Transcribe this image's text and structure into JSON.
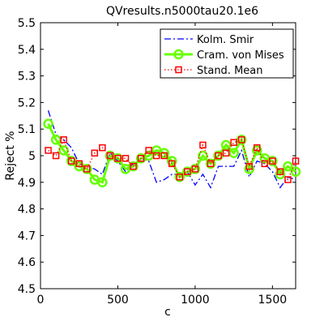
{
  "chart_data": {
    "type": "line",
    "title": "QVresults.n5000tau20.1e6",
    "xlabel": "c",
    "ylabel": "Reject %",
    "xlim": [
      0,
      1650
    ],
    "ylim": [
      4.5,
      5.5
    ],
    "xticks": [
      0,
      500,
      1000,
      1500
    ],
    "yticks": [
      4.5,
      4.6,
      4.7,
      4.8,
      4.9,
      5.0,
      5.1,
      5.2,
      5.3,
      5.4,
      5.5
    ],
    "xtick_labels": [
      "0",
      "500",
      "1000",
      "1500"
    ],
    "ytick_labels": [
      "4.5",
      "4.6",
      "4.7",
      "4.8",
      "4.9",
      "5",
      "5.1",
      "5.2",
      "5.3",
      "5.4",
      "5.5"
    ],
    "grid": false,
    "legend_position": "top-right",
    "x": [
      50,
      100,
      150,
      200,
      250,
      300,
      350,
      400,
      450,
      500,
      550,
      600,
      650,
      700,
      750,
      800,
      850,
      900,
      950,
      1000,
      1050,
      1100,
      1150,
      1200,
      1250,
      1300,
      1350,
      1400,
      1450,
      1500,
      1550,
      1600,
      1650
    ],
    "series": [
      {
        "name": "Kolm. Smir",
        "color": "#0000ff",
        "style": "dash-dot",
        "marker": "none",
        "values": [
          5.17,
          5.08,
          5.06,
          5.03,
          4.97,
          4.96,
          4.95,
          4.93,
          5.01,
          4.98,
          4.94,
          4.97,
          4.99,
          4.98,
          4.9,
          4.91,
          4.93,
          4.93,
          4.94,
          4.89,
          4.93,
          4.88,
          4.96,
          4.96,
          4.96,
          5.02,
          4.92,
          4.98,
          4.97,
          4.94,
          4.88,
          4.92,
          4.91
        ]
      },
      {
        "name": "Cram. von Mises",
        "color": "#66ff00",
        "style": "solid",
        "marker": "circle",
        "values": [
          5.12,
          5.06,
          5.02,
          4.98,
          4.96,
          4.95,
          4.91,
          4.9,
          5.0,
          4.99,
          4.95,
          4.96,
          4.99,
          5.0,
          5.02,
          5.01,
          4.98,
          4.92,
          4.94,
          4.95,
          5.0,
          4.97,
          5.0,
          5.04,
          5.01,
          5.06,
          4.95,
          5.02,
          4.99,
          4.98,
          4.93,
          4.96,
          4.94
        ]
      },
      {
        "name": "Stand. Mean",
        "color": "#ff0000",
        "style": "dotted",
        "marker": "square",
        "values": [
          5.02,
          5.0,
          5.06,
          4.98,
          4.97,
          4.95,
          5.01,
          5.03,
          5.0,
          4.99,
          4.99,
          4.96,
          4.99,
          5.02,
          5.0,
          5.0,
          4.97,
          4.92,
          4.94,
          4.95,
          5.04,
          4.97,
          5.0,
          5.01,
          5.05,
          5.06,
          4.96,
          5.03,
          4.97,
          4.98,
          4.94,
          4.91,
          4.98
        ]
      }
    ]
  }
}
